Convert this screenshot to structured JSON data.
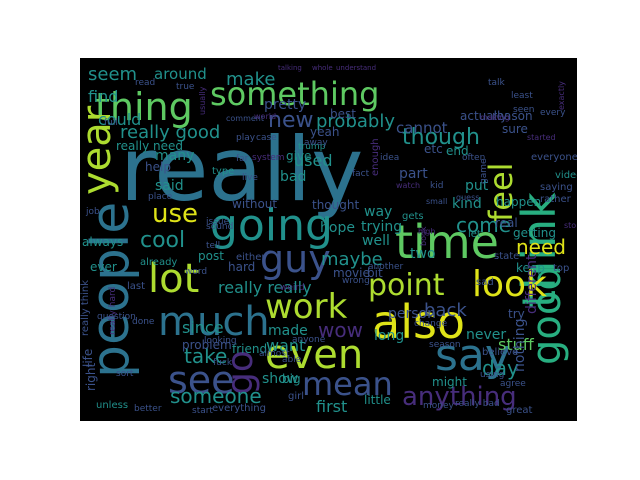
{
  "background": "#000000",
  "colormap": "viridis",
  "palette": {
    "purple": "#472d7b",
    "indigo": "#3b528b",
    "blue": "#2c728e",
    "teal": "#21918c",
    "green": "#28ae80",
    "lime": "#5ec962",
    "yellowgreen": "#addc30",
    "yellow": "#dfe318"
  },
  "words": [
    {
      "text": "really",
      "color": "blue"
    },
    {
      "text": "people",
      "color": "blue"
    },
    {
      "text": "think",
      "color": "green"
    },
    {
      "text": "something",
      "color": "lime"
    },
    {
      "text": "thing",
      "color": "lime"
    },
    {
      "text": "time",
      "color": "lime"
    },
    {
      "text": "going",
      "color": "teal"
    },
    {
      "text": "also",
      "color": "yellow"
    },
    {
      "text": "even",
      "color": "yellowgreen"
    },
    {
      "text": "much",
      "color": "blue"
    },
    {
      "text": "say",
      "color": "blue"
    },
    {
      "text": "good",
      "color": "green"
    },
    {
      "text": "look",
      "color": "yellow"
    },
    {
      "text": "work",
      "color": "yellowgreen"
    },
    {
      "text": "guy",
      "color": "indigo"
    },
    {
      "text": "see",
      "color": "indigo"
    },
    {
      "text": "go",
      "color": "purple"
    },
    {
      "text": "year",
      "color": "yellowgreen"
    },
    {
      "text": "lot",
      "color": "yellowgreen"
    },
    {
      "text": "mean",
      "color": "indigo"
    },
    {
      "text": "feel",
      "color": "yellowgreen"
    },
    {
      "text": "point",
      "color": "yellowgreen"
    },
    {
      "text": "use",
      "color": "yellow"
    },
    {
      "text": "make",
      "color": "teal"
    },
    {
      "text": "seem",
      "color": "teal"
    },
    {
      "text": "though",
      "color": "teal"
    },
    {
      "text": "cool",
      "color": "teal"
    },
    {
      "text": "new",
      "color": "indigo"
    },
    {
      "text": "anything",
      "color": "purple"
    },
    {
      "text": "need",
      "color": "yellow"
    },
    {
      "text": "day",
      "color": "teal"
    },
    {
      "text": "take",
      "color": "teal"
    },
    {
      "text": "someone",
      "color": "teal"
    },
    {
      "text": "wow",
      "color": "purple"
    },
    {
      "text": "really good",
      "color": "teal"
    },
    {
      "text": "probably",
      "color": "teal"
    },
    {
      "text": "find",
      "color": "teal"
    },
    {
      "text": "could",
      "color": "teal"
    },
    {
      "text": "around",
      "color": "teal"
    },
    {
      "text": "come",
      "color": "teal"
    },
    {
      "text": "cannot",
      "color": "indigo"
    },
    {
      "text": "back",
      "color": "indigo"
    },
    {
      "text": "said",
      "color": "teal"
    },
    {
      "text": "maybe",
      "color": "teal"
    },
    {
      "text": "really really",
      "color": "teal"
    },
    {
      "text": "since",
      "color": "teal"
    },
    {
      "text": "made",
      "color": "teal"
    },
    {
      "text": "want",
      "color": "teal"
    },
    {
      "text": "show",
      "color": "teal"
    },
    {
      "text": "first",
      "color": "teal"
    },
    {
      "text": "stuff",
      "color": "lime"
    },
    {
      "text": "nothing",
      "color": "indigo"
    },
    {
      "text": "never",
      "color": "teal"
    },
    {
      "text": "person",
      "color": "indigo"
    },
    {
      "text": "long",
      "color": "teal"
    },
    {
      "text": "way",
      "color": "teal"
    },
    {
      "text": "hope",
      "color": "teal"
    },
    {
      "text": "bad",
      "color": "teal"
    },
    {
      "text": "used",
      "color": "teal"
    },
    {
      "text": "pretty",
      "color": "indigo"
    },
    {
      "text": "help",
      "color": "indigo"
    },
    {
      "text": "many",
      "color": "teal"
    },
    {
      "text": "really need",
      "color": "teal"
    },
    {
      "text": "give",
      "color": "teal"
    },
    {
      "text": "yeah",
      "color": "indigo"
    },
    {
      "text": "best",
      "color": "indigo"
    },
    {
      "text": "thought",
      "color": "indigo"
    },
    {
      "text": "without",
      "color": "indigo"
    },
    {
      "text": "part",
      "color": "indigo"
    },
    {
      "text": "kind",
      "color": "teal"
    },
    {
      "text": "trying",
      "color": "teal"
    },
    {
      "text": "well",
      "color": "teal"
    },
    {
      "text": "two",
      "color": "teal"
    },
    {
      "text": "put",
      "color": "teal"
    },
    {
      "text": "end",
      "color": "teal"
    },
    {
      "text": "etc",
      "color": "indigo"
    },
    {
      "text": "real",
      "color": "indigo"
    },
    {
      "text": "getting",
      "color": "teal"
    },
    {
      "text": "happen",
      "color": "teal"
    },
    {
      "text": "actually",
      "color": "indigo"
    },
    {
      "text": "reason",
      "color": "indigo"
    },
    {
      "text": "sure",
      "color": "indigo"
    },
    {
      "text": "keep",
      "color": "teal"
    },
    {
      "text": "movie",
      "color": "indigo"
    },
    {
      "text": "always",
      "color": "teal"
    },
    {
      "text": "ever",
      "color": "teal"
    },
    {
      "text": "hard",
      "color": "indigo"
    },
    {
      "text": "either",
      "color": "indigo"
    },
    {
      "text": "post",
      "color": "teal"
    },
    {
      "text": "friend",
      "color": "teal"
    },
    {
      "text": "problem",
      "color": "indigo"
    },
    {
      "text": "big",
      "color": "teal"
    },
    {
      "text": "girl",
      "color": "indigo"
    },
    {
      "text": "bit",
      "color": "indigo"
    },
    {
      "text": "might",
      "color": "teal"
    },
    {
      "text": "little",
      "color": "teal"
    },
    {
      "text": "life",
      "color": "indigo"
    },
    {
      "text": "right",
      "color": "indigo"
    },
    {
      "text": "everything",
      "color": "indigo"
    },
    {
      "text": "start",
      "color": "indigo"
    },
    {
      "text": "better",
      "color": "indigo"
    },
    {
      "text": "unless",
      "color": "teal"
    },
    {
      "text": "money",
      "color": "indigo"
    },
    {
      "text": "really bad",
      "color": "indigo"
    },
    {
      "text": "great",
      "color": "indigo"
    },
    {
      "text": "saying",
      "color": "indigo"
    },
    {
      "text": "different",
      "color": "purple"
    },
    {
      "text": "try",
      "color": "indigo"
    },
    {
      "text": "video",
      "color": "teal"
    },
    {
      "text": "everyone",
      "color": "indigo"
    },
    {
      "text": "rather",
      "color": "indigo"
    },
    {
      "text": "state",
      "color": "indigo"
    },
    {
      "text": "top",
      "color": "indigo"
    },
    {
      "text": "change",
      "color": "indigo"
    },
    {
      "text": "season",
      "color": "indigo"
    },
    {
      "text": "believe",
      "color": "indigo"
    },
    {
      "text": "agree",
      "color": "indigo"
    },
    {
      "text": "using",
      "color": "indigo"
    },
    {
      "text": "sad",
      "color": "indigo"
    },
    {
      "text": "let",
      "color": "teal"
    },
    {
      "text": "gets",
      "color": "teal"
    },
    {
      "text": "already",
      "color": "teal"
    },
    {
      "text": "done",
      "color": "indigo"
    },
    {
      "text": "word",
      "color": "indigo"
    },
    {
      "text": "last",
      "color": "indigo"
    },
    {
      "text": "another",
      "color": "indigo"
    },
    {
      "text": "wrong",
      "color": "indigo"
    },
    {
      "text": "weird",
      "color": "purple"
    },
    {
      "text": "anyone",
      "color": "indigo"
    },
    {
      "text": "fuck",
      "color": "indigo"
    },
    {
      "text": "able",
      "color": "indigo"
    },
    {
      "text": "almost",
      "color": "indigo"
    },
    {
      "text": "looking",
      "color": "indigo"
    },
    {
      "text": "sort",
      "color": "indigo"
    },
    {
      "text": "really think",
      "color": "indigo"
    },
    {
      "text": "really hard",
      "color": "purple"
    },
    {
      "text": "question",
      "color": "indigo"
    },
    {
      "text": "job",
      "color": "indigo"
    },
    {
      "text": "type",
      "color": "teal"
    },
    {
      "text": "place",
      "color": "indigo"
    },
    {
      "text": "far",
      "color": "indigo"
    },
    {
      "text": "system",
      "color": "purple"
    },
    {
      "text": "live",
      "color": "indigo"
    },
    {
      "text": "issue",
      "color": "indigo"
    },
    {
      "text": "sound",
      "color": "indigo"
    },
    {
      "text": "tell",
      "color": "indigo"
    },
    {
      "text": "full",
      "color": "indigo"
    },
    {
      "text": "usually",
      "color": "purple"
    },
    {
      "text": "comment",
      "color": "indigo"
    },
    {
      "text": "world",
      "color": "purple"
    },
    {
      "text": "play",
      "color": "indigo"
    },
    {
      "text": "case",
      "color": "indigo"
    },
    {
      "text": "trump",
      "color": "teal"
    },
    {
      "text": "read",
      "color": "indigo"
    },
    {
      "text": "true",
      "color": "indigo"
    },
    {
      "text": "talking",
      "color": "purple"
    },
    {
      "text": "whole",
      "color": "purple"
    },
    {
      "text": "understand",
      "color": "purple"
    },
    {
      "text": "least",
      "color": "indigo"
    },
    {
      "text": "talk",
      "color": "indigo"
    },
    {
      "text": "every",
      "color": "indigo"
    },
    {
      "text": "making",
      "color": "purple"
    },
    {
      "text": "started",
      "color": "purple"
    },
    {
      "text": "seen",
      "color": "indigo"
    },
    {
      "text": "exactly",
      "color": "purple"
    },
    {
      "text": "often",
      "color": "indigo"
    },
    {
      "text": "kid",
      "color": "indigo"
    },
    {
      "text": "small",
      "color": "indigo"
    },
    {
      "text": "guess",
      "color": "indigo"
    },
    {
      "text": "high",
      "color": "purple"
    },
    {
      "text": "game",
      "color": "indigo"
    },
    {
      "text": "idea",
      "color": "indigo"
    },
    {
      "text": "enough",
      "color": "purple"
    },
    {
      "text": "fact",
      "color": "indigo"
    },
    {
      "text": "story",
      "color": "purple"
    },
    {
      "text": "watch",
      "color": "purple"
    },
    {
      "text": "book",
      "color": "purple"
    },
    {
      "text": "away",
      "color": "indigo"
    }
  ]
}
